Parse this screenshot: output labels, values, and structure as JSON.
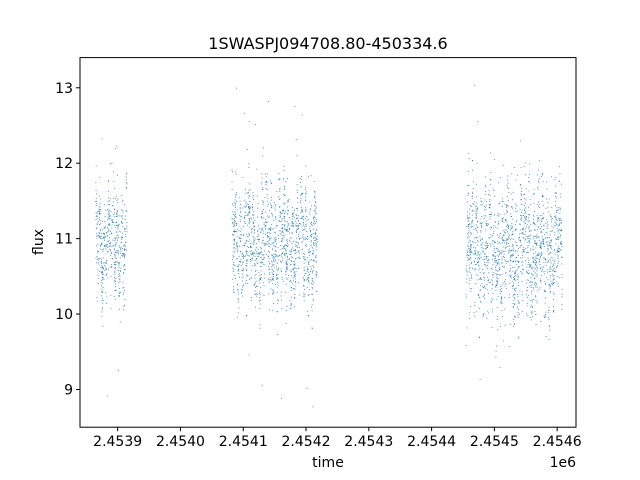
{
  "chart_data": {
    "type": "scatter",
    "title": "1SWASPJ094708.80-450334.6",
    "xlabel": "time",
    "ylabel": "flux",
    "x_offset_label": "1e6",
    "x_scale": 1000000,
    "xlim": [
      2453840,
      2454630
    ],
    "ylim": [
      8.5,
      13.4
    ],
    "x_ticks": [
      2453900,
      2454000,
      2454100,
      2454200,
      2454300,
      2454400,
      2454500,
      2454600
    ],
    "x_tick_labels": [
      "2.4539",
      "2.4540",
      "2.4541",
      "2.4542",
      "2.4543",
      "2.4544",
      "2.4545",
      "2.4546"
    ],
    "y_ticks": [
      9,
      10,
      11,
      12,
      13
    ],
    "y_tick_labels": [
      "9",
      "10",
      "11",
      "12",
      "13"
    ],
    "grid": false,
    "legend": "none",
    "point_color": "#1f77b4",
    "observing_seasons": [
      {
        "x_start": 2453865,
        "x_end": 2453915,
        "center": 10.95,
        "spread": 0.55
      },
      {
        "x_start": 2454082,
        "x_end": 2454218,
        "center": 10.95,
        "spread": 0.55
      },
      {
        "x_start": 2454455,
        "x_end": 2454608,
        "center": 10.85,
        "spread": 0.65
      }
    ]
  }
}
